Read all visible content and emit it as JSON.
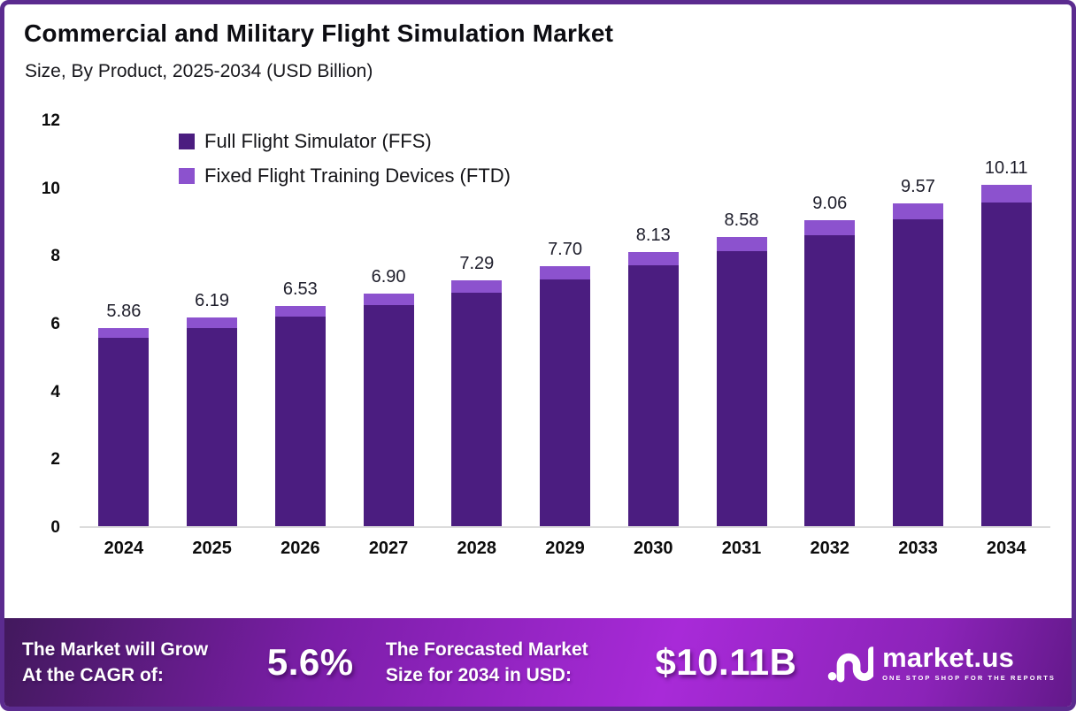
{
  "header": {
    "title": "Commercial and Military Flight Simulation Market",
    "subtitle": "Size, By Product, 2025-2034 (USD Billion)"
  },
  "chart_data": {
    "type": "bar",
    "stacked": true,
    "title": "Commercial and Military Flight Simulation Market Size, By Product, 2025-2034 (USD Billion)",
    "categories": [
      "2024",
      "2025",
      "2026",
      "2027",
      "2028",
      "2029",
      "2030",
      "2031",
      "2032",
      "2033",
      "2034"
    ],
    "series": [
      {
        "name": "Full Flight Simulator (FFS)",
        "color": "#4b1d80",
        "values": [
          5.57,
          5.88,
          6.2,
          6.55,
          6.92,
          7.31,
          7.72,
          8.15,
          8.61,
          9.09,
          9.6
        ]
      },
      {
        "name": "Fixed Flight Training Devices (FTD)",
        "color": "#8c52ce",
        "values": [
          0.29,
          0.31,
          0.33,
          0.35,
          0.37,
          0.39,
          0.41,
          0.43,
          0.45,
          0.48,
          0.51
        ]
      }
    ],
    "total_labels": [
      "5.86",
      "6.19",
      "6.53",
      "6.90",
      "7.29",
      "7.70",
      "8.13",
      "8.58",
      "9.06",
      "9.57",
      "10.11"
    ],
    "xlabel": "",
    "ylabel": "",
    "ylim": [
      0,
      12
    ],
    "yticks": [
      0,
      2,
      4,
      6,
      8,
      10,
      12
    ],
    "grid": false,
    "legend_position": "top-left",
    "axis_line_color": "#dcdcdc"
  },
  "footer": {
    "cagr_label_line1": "The Market will Grow",
    "cagr_label_line2": "At the CAGR of:",
    "cagr_value": "5.6%",
    "forecast_label_line1": "The Forecasted Market",
    "forecast_label_line2": "Size for 2034 in USD:",
    "forecast_value": "$10.11B",
    "logo_name": "market.us",
    "logo_tagline": "ONE STOP SHOP FOR THE REPORTS",
    "gradient_colors": [
      "#42195d",
      "#a82ad8",
      "#63198a"
    ]
  },
  "frame": {
    "border_color": "#5b2b8f",
    "background": "#ffffff"
  }
}
